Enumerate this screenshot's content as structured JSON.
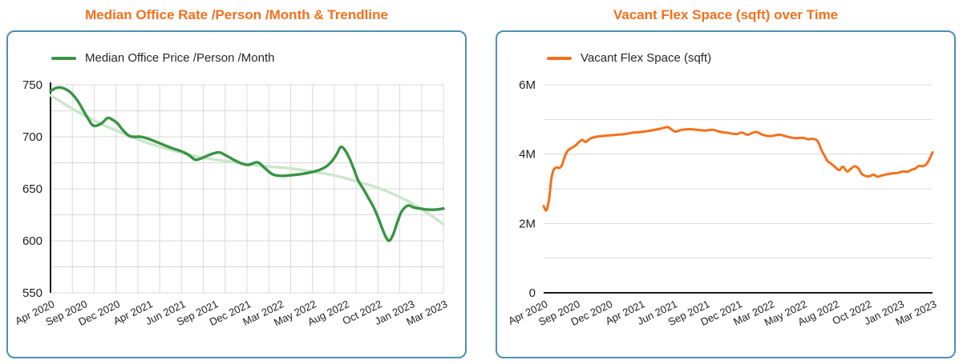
{
  "theme": {
    "title_color": "#F4701D",
    "card_border_color": "#4C90B4",
    "grid_color": "#D9D9D9",
    "axis_color": "#1A1A1A",
    "label_color": "#1F1F1F"
  },
  "chart_data": [
    {
      "type": "line",
      "title": "Median Office Rate /Person /Month & Trendline",
      "legend": [
        {
          "label": "Median Office Price /Person /Month",
          "color": "#389544"
        }
      ],
      "x_tick_labels": [
        "Apr 2020",
        "Sep 2020",
        "Dec 2020",
        "Apr 2021",
        "Jun 2021",
        "Sep 2021",
        "Dec 2021",
        "Mar 2022",
        "May 2022",
        "Aug 2022",
        "Oct 2022",
        "Jan 2023",
        "Mar 2023"
      ],
      "ylim": [
        550,
        750
      ],
      "y_ticks": [
        {
          "v": 550,
          "label": "550"
        },
        {
          "v": 600,
          "label": "600"
        },
        {
          "v": 650,
          "label": "650"
        },
        {
          "v": 700,
          "label": "700"
        },
        {
          "v": 750,
          "label": "750"
        }
      ],
      "grid": {
        "h_step": 25,
        "v_line_count": 19
      },
      "y_axis_line": true,
      "baseline": null,
      "series": [
        {
          "name": "Median Office Price /Person /Month",
          "color": "#389544",
          "width": 3.4,
          "points": [
            [
              0.0,
              744
            ],
            [
              0.015,
              747
            ],
            [
              0.03,
              747
            ],
            [
              0.05,
              743
            ],
            [
              0.07,
              734
            ],
            [
              0.09,
              721
            ],
            [
              0.105,
              712
            ],
            [
              0.115,
              710.5
            ],
            [
              0.13,
              713
            ],
            [
              0.145,
              718
            ],
            [
              0.155,
              717
            ],
            [
              0.17,
              713
            ],
            [
              0.185,
              706
            ],
            [
              0.2,
              701
            ],
            [
              0.215,
              700
            ],
            [
              0.23,
              700
            ],
            [
              0.25,
              698
            ],
            [
              0.27,
              695
            ],
            [
              0.29,
              692
            ],
            [
              0.31,
              689
            ],
            [
              0.33,
              686.5
            ],
            [
              0.35,
              683
            ],
            [
              0.368,
              678
            ],
            [
              0.385,
              679.5
            ],
            [
              0.4,
              682
            ],
            [
              0.415,
              684
            ],
            [
              0.43,
              685
            ],
            [
              0.447,
              682
            ],
            [
              0.466,
              678
            ],
            [
              0.485,
              674.5
            ],
            [
              0.503,
              673
            ],
            [
              0.527,
              675.5
            ],
            [
              0.545,
              670
            ],
            [
              0.565,
              664
            ],
            [
              0.585,
              662.5
            ],
            [
              0.61,
              663
            ],
            [
              0.635,
              664
            ],
            [
              0.658,
              665.5
            ],
            [
              0.68,
              667.5
            ],
            [
              0.7,
              671
            ],
            [
              0.715,
              676
            ],
            [
              0.728,
              683
            ],
            [
              0.738,
              690
            ],
            [
              0.748,
              688
            ],
            [
              0.76,
              680
            ],
            [
              0.772,
              669
            ],
            [
              0.783,
              658
            ],
            [
              0.796,
              650
            ],
            [
              0.808,
              642
            ],
            [
              0.82,
              634
            ],
            [
              0.832,
              624
            ],
            [
              0.843,
              613
            ],
            [
              0.853,
              604
            ],
            [
              0.862,
              600
            ],
            [
              0.872,
              606
            ],
            [
              0.882,
              617
            ],
            [
              0.892,
              627
            ],
            [
              0.902,
              632
            ],
            [
              0.912,
              634
            ],
            [
              0.925,
              632
            ],
            [
              0.94,
              631
            ],
            [
              0.96,
              630
            ],
            [
              0.98,
              630
            ],
            [
              1.0,
              631
            ]
          ]
        },
        {
          "name": "Trendline",
          "color": "#CDE6CC",
          "width": 3.5,
          "points": [
            [
              0.0,
              740
            ],
            [
              0.06,
              726
            ],
            [
              0.12,
              714
            ],
            [
              0.18,
              704
            ],
            [
              0.24,
              695
            ],
            [
              0.3,
              688
            ],
            [
              0.36,
              682
            ],
            [
              0.42,
              678
            ],
            [
              0.48,
              675
            ],
            [
              0.54,
              672
            ],
            [
              0.6,
              670
            ],
            [
              0.66,
              667
            ],
            [
              0.72,
              663
            ],
            [
              0.78,
              657
            ],
            [
              0.84,
              650
            ],
            [
              0.9,
              640
            ],
            [
              0.95,
              629
            ],
            [
              1.0,
              616
            ]
          ]
        }
      ]
    },
    {
      "type": "line",
      "title": "Vacant Flex Space (sqft) over Time",
      "legend": [
        {
          "label": "Vacant Flex Space (sqft)",
          "color": "#F4711C"
        }
      ],
      "x_tick_labels": [
        "Apr 2020",
        "Sep 2020",
        "Dec 2020",
        "Apr 2021",
        "Jun 2021",
        "Sep 2021",
        "Dec 2021",
        "Mar 2022",
        "May 2022",
        "Aug 2022",
        "Oct 2022",
        "Jan 2023",
        "Mar 2023"
      ],
      "y_unit": "million sqft",
      "ylim": [
        0,
        6
      ],
      "y_ticks": [
        {
          "v": 0,
          "label": "0"
        },
        {
          "v": 2,
          "label": "2M"
        },
        {
          "v": 4,
          "label": "4M"
        },
        {
          "v": 6,
          "label": "6M"
        }
      ],
      "grid": {
        "h_step": 1,
        "v_line_count": 0
      },
      "y_axis_line": false,
      "baseline": 0,
      "series": [
        {
          "name": "Vacant Flex Space (sqft)",
          "color": "#F4711C",
          "width": 3,
          "points": [
            [
              0.0,
              2.5
            ],
            [
              0.007,
              2.38
            ],
            [
              0.014,
              2.7
            ],
            [
              0.02,
              3.3
            ],
            [
              0.026,
              3.55
            ],
            [
              0.033,
              3.62
            ],
            [
              0.04,
              3.6
            ],
            [
              0.047,
              3.68
            ],
            [
              0.054,
              3.92
            ],
            [
              0.062,
              4.1
            ],
            [
              0.072,
              4.18
            ],
            [
              0.082,
              4.25
            ],
            [
              0.092,
              4.36
            ],
            [
              0.1,
              4.41
            ],
            [
              0.108,
              4.35
            ],
            [
              0.12,
              4.45
            ],
            [
              0.135,
              4.5
            ],
            [
              0.15,
              4.52
            ],
            [
              0.17,
              4.54
            ],
            [
              0.19,
              4.56
            ],
            [
              0.21,
              4.58
            ],
            [
              0.23,
              4.62
            ],
            [
              0.25,
              4.64
            ],
            [
              0.27,
              4.67
            ],
            [
              0.29,
              4.71
            ],
            [
              0.31,
              4.76
            ],
            [
              0.32,
              4.78
            ],
            [
              0.33,
              4.7
            ],
            [
              0.34,
              4.65
            ],
            [
              0.355,
              4.7
            ],
            [
              0.375,
              4.72
            ],
            [
              0.395,
              4.7
            ],
            [
              0.415,
              4.68
            ],
            [
              0.435,
              4.7
            ],
            [
              0.455,
              4.64
            ],
            [
              0.475,
              4.61
            ],
            [
              0.495,
              4.58
            ],
            [
              0.51,
              4.62
            ],
            [
              0.525,
              4.56
            ],
            [
              0.545,
              4.64
            ],
            [
              0.565,
              4.55
            ],
            [
              0.585,
              4.52
            ],
            [
              0.605,
              4.56
            ],
            [
              0.625,
              4.51
            ],
            [
              0.645,
              4.46
            ],
            [
              0.665,
              4.47
            ],
            [
              0.68,
              4.43
            ],
            [
              0.693,
              4.44
            ],
            [
              0.705,
              4.37
            ],
            [
              0.715,
              4.1
            ],
            [
              0.722,
              3.96
            ],
            [
              0.73,
              3.8
            ],
            [
              0.74,
              3.72
            ],
            [
              0.75,
              3.62
            ],
            [
              0.76,
              3.54
            ],
            [
              0.77,
              3.64
            ],
            [
              0.78,
              3.5
            ],
            [
              0.79,
              3.58
            ],
            [
              0.8,
              3.65
            ],
            [
              0.81,
              3.58
            ],
            [
              0.818,
              3.43
            ],
            [
              0.828,
              3.37
            ],
            [
              0.838,
              3.36
            ],
            [
              0.848,
              3.41
            ],
            [
              0.858,
              3.35
            ],
            [
              0.868,
              3.38
            ],
            [
              0.88,
              3.41
            ],
            [
              0.895,
              3.44
            ],
            [
              0.91,
              3.46
            ],
            [
              0.925,
              3.5
            ],
            [
              0.935,
              3.49
            ],
            [
              0.945,
              3.54
            ],
            [
              0.955,
              3.58
            ],
            [
              0.965,
              3.66
            ],
            [
              0.975,
              3.65
            ],
            [
              0.985,
              3.72
            ],
            [
              0.993,
              3.88
            ],
            [
              1.0,
              4.05
            ]
          ]
        }
      ]
    }
  ]
}
